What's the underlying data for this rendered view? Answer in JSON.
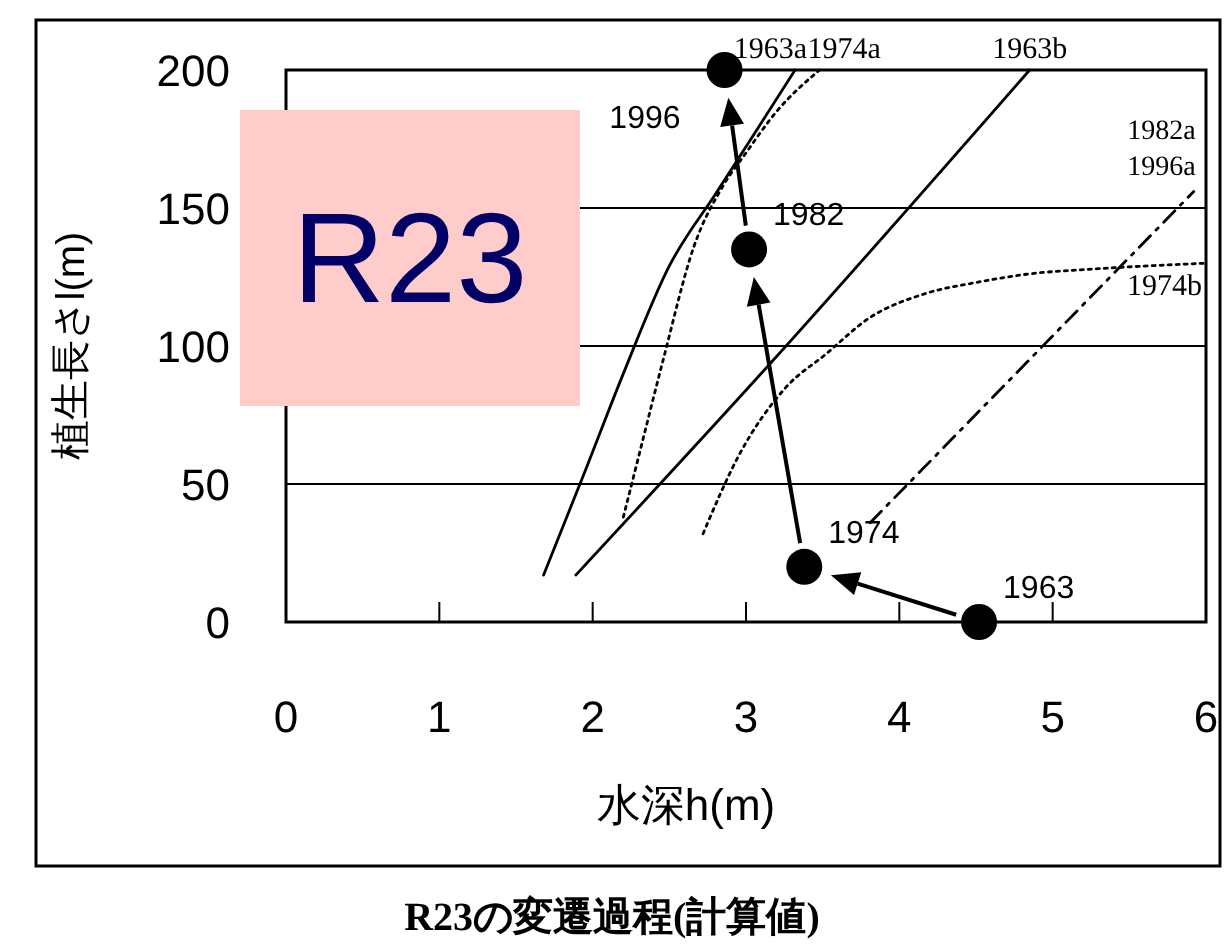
{
  "chart_data": {
    "type": "line",
    "title": "R23の変遷過程(計算値)",
    "xlabel": "水深h(m)",
    "ylabel": "植生長さl(m)",
    "xlim": [
      0,
      6
    ],
    "xticks": [
      0,
      1,
      2,
      3,
      4,
      5,
      6
    ],
    "ylim": [
      0,
      200
    ],
    "yticks": [
      0,
      50,
      100,
      150,
      200
    ],
    "grid": "y",
    "series": [
      {
        "name": "1963a",
        "color": "#000000",
        "line_style": "solid",
        "x": [
          1.68,
          1.96,
          2.2,
          2.5,
          2.8,
          3.09,
          3.32
        ],
        "values": [
          17,
          56,
          90,
          129,
          155,
          180,
          200
        ]
      },
      {
        "name": "1974a",
        "color": "#000000",
        "line_style": "dotted",
        "x": [
          2.2,
          2.3,
          2.46,
          2.66,
          2.85,
          3.0,
          3.2,
          3.48
        ],
        "values": [
          38,
          60,
          95,
          136,
          158,
          170,
          185,
          200
        ]
      },
      {
        "name": "1963b",
        "color": "#000000",
        "line_style": "solid",
        "x": [
          1.89,
          3.18,
          4.85
        ],
        "values": [
          17,
          95,
          200
        ]
      },
      {
        "name": "1974b",
        "color": "#000000",
        "line_style": "dotted",
        "x": [
          2.72,
          2.95,
          3.26,
          3.52,
          3.8,
          4.17,
          4.5,
          4.83,
          5.3,
          6.0
        ],
        "values": [
          32,
          60,
          85,
          97,
          110,
          119,
          123,
          126,
          128,
          130
        ]
      },
      {
        "name": "1982a",
        "color": "#000000",
        "line_style": "dashdot",
        "x": [
          3.81,
          4.83,
          5.92
        ],
        "values": [
          36,
          94,
          156
        ]
      },
      {
        "type": "scatter",
        "color": "#000000",
        "marker": "circle",
        "x": [
          4.52,
          3.38,
          3.02,
          2.86
        ],
        "values": [
          0,
          20,
          135,
          200
        ]
      }
    ],
    "annotations": [
      {
        "text": "1996a",
        "x": 5.92,
        "y": 156
      },
      {
        "text": "1963",
        "x": 4.52,
        "y": 0
      },
      {
        "text": "1974",
        "x": 3.38,
        "y": 20
      },
      {
        "text": "1982",
        "x": 3.02,
        "y": 135
      },
      {
        "text": "1996",
        "x": 2.86,
        "y": 200
      },
      "R23"
    ]
  }
}
